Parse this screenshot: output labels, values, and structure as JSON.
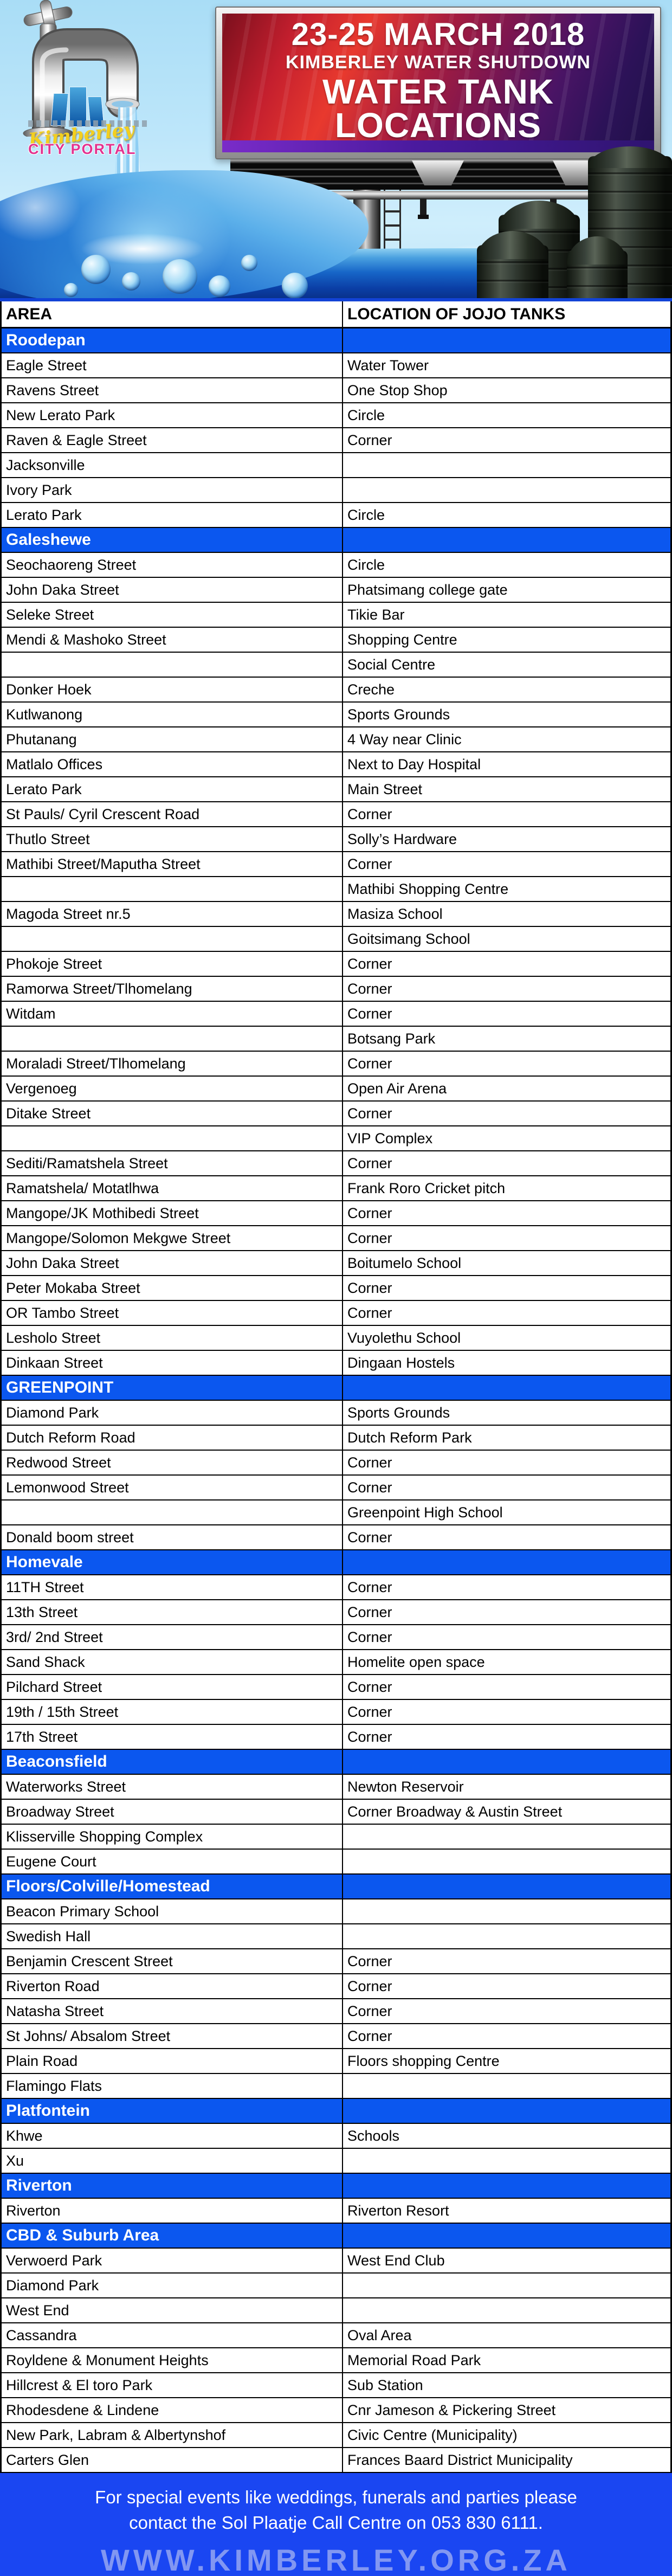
{
  "hero": {
    "logo": {
      "script": "Kimberley",
      "block": "CITY PORTAL"
    },
    "billboard": {
      "line1": "23-25 MARCH 2018",
      "line2": "KIMBERLEY WATER SHUTDOWN",
      "line3": "WATER TANK",
      "line4": "LOCATIONS"
    },
    "icons": [
      "faucet-icon",
      "water-stream",
      "water-tank-icon",
      "billboard",
      "water-wave"
    ]
  },
  "table": {
    "columns": [
      "AREA",
      "LOCATION OF JOJO TANKS"
    ],
    "sections": [
      {
        "name": "Roodepan",
        "rows": [
          [
            "Eagle Street",
            "Water Tower"
          ],
          [
            "Ravens Street",
            "One Stop Shop"
          ],
          [
            "New Lerato Park",
            "Circle"
          ],
          [
            "Raven & Eagle Street",
            "Corner"
          ],
          [
            "Jacksonville",
            ""
          ],
          [
            "Ivory Park",
            ""
          ],
          [
            "Lerato Park",
            "Circle"
          ]
        ]
      },
      {
        "name": "Galeshewe",
        "rows": [
          [
            "Seochaoreng Street",
            "Circle"
          ],
          [
            "John Daka Street",
            "Phatsimang college gate"
          ],
          [
            "Seleke Street",
            "Tikie Bar"
          ],
          [
            "Mendi & Mashoko Street",
            "Shopping Centre"
          ],
          [
            "",
            "Social Centre"
          ],
          [
            "Donker Hoek",
            "Creche"
          ],
          [
            "Kutlwanong",
            "Sports Grounds"
          ],
          [
            "Phutanang",
            "4 Way near Clinic"
          ],
          [
            "Matlalo Offices",
            "Next to Day Hospital"
          ],
          [
            "Lerato Park",
            "Main Street"
          ],
          [
            "St Pauls/ Cyril Crescent Road",
            "Corner"
          ],
          [
            "Thutlo Street",
            "Solly’s Hardware"
          ],
          [
            "Mathibi Street/Maputha Street",
            "Corner"
          ],
          [
            "",
            "Mathibi Shopping Centre"
          ],
          [
            "Magoda Street nr.5",
            "Masiza School"
          ],
          [
            "",
            "Goitsimang School"
          ],
          [
            "Phokoje Street",
            "Corner"
          ],
          [
            "Ramorwa Street/Tlhomelang",
            "Corner"
          ],
          [
            "Witdam",
            "Corner"
          ],
          [
            "",
            "Botsang Park"
          ],
          [
            "Moraladi Street/Tlhomelang",
            "Corner"
          ],
          [
            "Vergenoeg",
            "Open Air Arena"
          ],
          [
            "Ditake Street",
            "Corner"
          ],
          [
            "",
            "VIP Complex"
          ],
          [
            "Sediti/Ramatshela Street",
            "Corner"
          ],
          [
            "Ramatshela/ Motatlhwa",
            "Frank Roro Cricket pitch"
          ],
          [
            "Mangope/JK Mothibedi Street",
            "Corner"
          ],
          [
            "Mangope/Solomon Mekgwe Street",
            "Corner"
          ],
          [
            "John Daka Street",
            "Boitumelo School"
          ],
          [
            "Peter Mokaba Street",
            "Corner"
          ],
          [
            "OR Tambo Street",
            "Corner"
          ],
          [
            "Lesholo Street",
            "Vuyolethu School"
          ],
          [
            "Dinkaan Street",
            "Dingaan Hostels"
          ]
        ]
      },
      {
        "name": "GREENPOINT",
        "rows": [
          [
            "Diamond Park",
            "Sports Grounds"
          ],
          [
            "Dutch Reform Road",
            "Dutch Reform Park"
          ],
          [
            "Redwood Street",
            "Corner"
          ],
          [
            "Lemonwood Street",
            "Corner"
          ],
          [
            "",
            "Greenpoint High School"
          ],
          [
            "Donald boom street",
            "Corner"
          ]
        ]
      },
      {
        "name": "Homevale",
        "rows": [
          [
            "11TH Street",
            "Corner"
          ],
          [
            "13th Street",
            "Corner"
          ],
          [
            "3rd/ 2nd Street",
            "Corner"
          ],
          [
            "Sand Shack",
            "Homelite open space"
          ],
          [
            "Pilchard Street",
            "Corner"
          ],
          [
            "19th / 15th Street",
            "Corner"
          ],
          [
            "17th Street",
            "Corner"
          ]
        ]
      },
      {
        "name": "Beaconsfield",
        "rows": [
          [
            "Waterworks Street",
            "Newton Reservoir"
          ],
          [
            "Broadway Street",
            "Corner Broadway & Austin Street"
          ],
          [
            "Klisserville Shopping Complex",
            ""
          ],
          [
            "Eugene Court",
            ""
          ]
        ]
      },
      {
        "name": "Floors/Colville/Homestead",
        "rows": [
          [
            "Beacon Primary School",
            ""
          ],
          [
            "Swedish Hall",
            ""
          ],
          [
            "Benjamin Crescent Street",
            "Corner"
          ],
          [
            "Riverton Road",
            "Corner"
          ],
          [
            "Natasha Street",
            "Corner"
          ],
          [
            "St Johns/ Absalom Street",
            "Corner"
          ],
          [
            "Plain Road",
            "Floors shopping Centre"
          ],
          [
            "Flamingo Flats",
            ""
          ]
        ]
      },
      {
        "name": "Platfontein",
        "rows": [
          [
            "Khwe",
            "Schools"
          ],
          [
            "Xu",
            ""
          ]
        ]
      },
      {
        "name": "Riverton",
        "rows": [
          [
            "Riverton",
            "Riverton Resort"
          ]
        ]
      },
      {
        "name": "CBD & Suburb Area",
        "rows": [
          [
            "Verwoerd Park",
            "West End Club"
          ],
          [
            "Diamond Park",
            ""
          ],
          [
            "West End",
            ""
          ],
          [
            "Cassandra",
            "Oval Area"
          ],
          [
            "Royldene & Monument Heights",
            "Memorial Road Park"
          ],
          [
            "Hillcrest & El toro Park",
            "Sub Station"
          ],
          [
            "Rhodesdene & Lindene",
            "Cnr Jameson & Pickering Street"
          ],
          [
            "New Park, Labram & Albertynshof",
            "Civic Centre (Municipality)"
          ],
          [
            "Carters Glen",
            "Frances Baard District Municipality"
          ]
        ]
      }
    ]
  },
  "footer": {
    "line1": "For special events like weddings, funerals and parties please",
    "line2": "contact the Sol Plaatje Call Centre on 053 830 6111.",
    "website": "WWW.KIMBERLEY.ORG.ZA"
  },
  "colors": {
    "section_blue": "#0b57ef",
    "footer_blue": "#1a46f2",
    "billboard_red": "#c41f2e",
    "billboard_purple": "#4a1a9e",
    "logo_yellow": "#f3cf1f",
    "logo_pink": "#e2338f",
    "sky_blue": "#bde6fa"
  }
}
